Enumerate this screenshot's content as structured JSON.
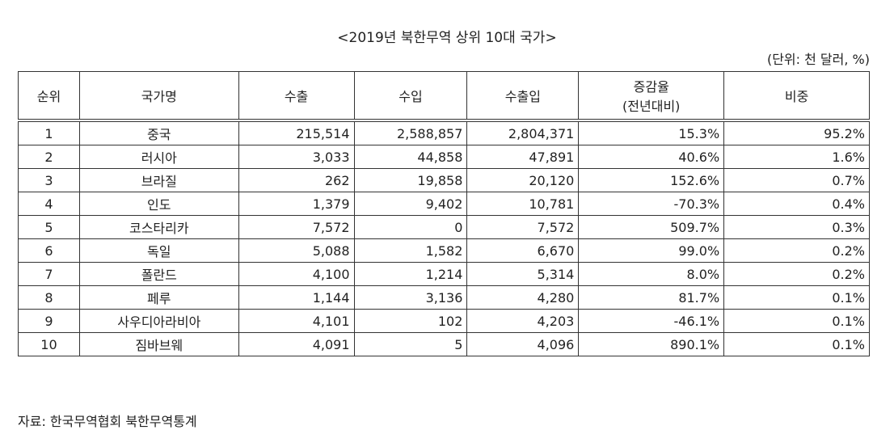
{
  "title": "<2019년 북한무역 상위 10대 국가>",
  "unit": "(단위: 천 달러, %)",
  "table": {
    "header": [
      "순위",
      "국가명",
      "수출",
      "수입",
      "수출입",
      [
        "증감율",
        "(전년대비)"
      ],
      "비중"
    ],
    "rows": [
      [
        "1",
        "중국",
        "215,514",
        "2,588,857",
        "2,804,371",
        "15.3%",
        "95.2%"
      ],
      [
        "2",
        "러시아",
        "3,033",
        "44,858",
        "47,891",
        "40.6%",
        "1.6%"
      ],
      [
        "3",
        "브라질",
        "262",
        "19,858",
        "20,120",
        "152.6%",
        "0.7%"
      ],
      [
        "4",
        "인도",
        "1,379",
        "9,402",
        "10,781",
        "-70.3%",
        "0.4%"
      ],
      [
        "5",
        "코스타리카",
        "7,572",
        "0",
        "7,572",
        "509.7%",
        "0.3%"
      ],
      [
        "6",
        "독일",
        "5,088",
        "1,582",
        "6,670",
        "99.0%",
        "0.2%"
      ],
      [
        "7",
        "폴란드",
        "4,100",
        "1,214",
        "5,314",
        "8.0%",
        "0.2%"
      ],
      [
        "8",
        "페루",
        "1,144",
        "3,136",
        "4,280",
        "81.7%",
        "0.1%"
      ],
      [
        "9",
        "사우디아라비아",
        "4,101",
        "102",
        "4,203",
        "-46.1%",
        "0.1%"
      ],
      [
        "10",
        "짐바브웨",
        "4,091",
        "5",
        "4,096",
        "890.1%",
        "0.1%"
      ]
    ]
  },
  "source": "자료: 한국무역협회 북한무역통계"
}
